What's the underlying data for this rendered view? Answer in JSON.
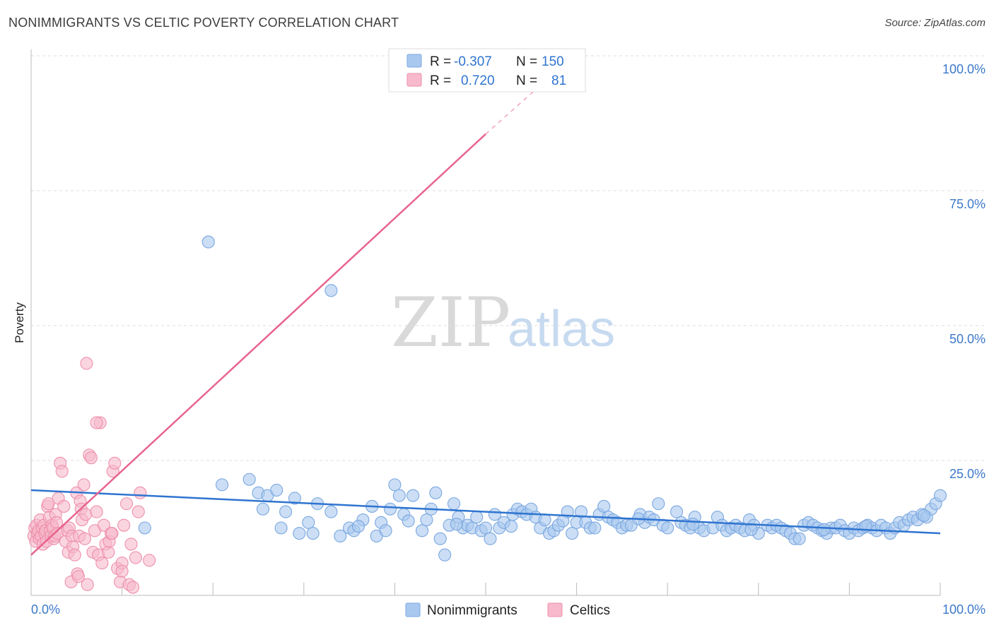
{
  "title": "NONIMMIGRANTS VS CELTIC POVERTY CORRELATION CHART",
  "source": "Source: ZipAtlas.com",
  "watermark": {
    "zip": "ZIP",
    "atlas": "atlas"
  },
  "legend": {
    "rows": [
      {
        "r_label": "R =",
        "r_value": "-0.307",
        "n_label": "N =",
        "n_value": "150"
      },
      {
        "r_label": "R =",
        "r_value": "0.720",
        "n_label": "N =",
        "n_value": "81"
      }
    ]
  },
  "bottom_legend": [
    "Nonimmigrants",
    "Celtics"
  ],
  "colors": {
    "blue_fill": "#a9c8ef",
    "blue_stroke": "#7aa7e0",
    "blue_line": "#2f74d0",
    "pink_fill": "#f7b9cb",
    "pink_stroke": "#ee8fab",
    "pink_line": "#e8648f",
    "tick_text": "#3d79c9",
    "grid": "#dddddd"
  },
  "chart_data": {
    "type": "scatter",
    "title": "NONIMMIGRANTS VS CELTIC POVERTY CORRELATION CHART",
    "xlabel": "",
    "ylabel": "Poverty",
    "xlim": [
      0,
      100
    ],
    "ylim": [
      0,
      100
    ],
    "x_tick_labels": [
      "0.0%",
      "100.0%"
    ],
    "y_tick_labels": [
      "25.0%",
      "50.0%",
      "75.0%",
      "100.0%"
    ],
    "y_tick_values": [
      25,
      50,
      75,
      100
    ],
    "series": [
      {
        "name": "Nonimmigrants",
        "r": -0.307,
        "n": 150,
        "trend": {
          "x": [
            0,
            100
          ],
          "y": [
            19.5,
            11.5
          ]
        },
        "points": [
          [
            12.5,
            12.5
          ],
          [
            19.5,
            65.5
          ],
          [
            21,
            20.5
          ],
          [
            24,
            21.5
          ],
          [
            25,
            19
          ],
          [
            25.5,
            16
          ],
          [
            26,
            18.5
          ],
          [
            27,
            19.5
          ],
          [
            27.5,
            12.5
          ],
          [
            28,
            15.5
          ],
          [
            29,
            18
          ],
          [
            29.5,
            11.5
          ],
          [
            30.5,
            13.5
          ],
          [
            31,
            11.5
          ],
          [
            31.5,
            17
          ],
          [
            33,
            15.5
          ],
          [
            33,
            56.5
          ],
          [
            34,
            11
          ],
          [
            35,
            12.5
          ],
          [
            35.5,
            12
          ],
          [
            36.5,
            14
          ],
          [
            37.5,
            16.5
          ],
          [
            38,
            11
          ],
          [
            38.5,
            13.5
          ],
          [
            39,
            12
          ],
          [
            39.5,
            16
          ],
          [
            40,
            20.5
          ],
          [
            40.5,
            18.5
          ],
          [
            41,
            15
          ],
          [
            42,
            18.5
          ],
          [
            43,
            12
          ],
          [
            43.5,
            14
          ],
          [
            44,
            16
          ],
          [
            44.5,
            19
          ],
          [
            45,
            10.5
          ],
          [
            45.5,
            7.5
          ],
          [
            46,
            13
          ],
          [
            46.5,
            17
          ],
          [
            47,
            14.5
          ],
          [
            47.5,
            12.5
          ],
          [
            48,
            13
          ],
          [
            48.5,
            12.5
          ],
          [
            49,
            14.5
          ],
          [
            49.5,
            12
          ],
          [
            50,
            12.5
          ],
          [
            50.5,
            10.5
          ],
          [
            51,
            15
          ],
          [
            51.5,
            12.5
          ],
          [
            52,
            13.5
          ],
          [
            53,
            15
          ],
          [
            53.5,
            16
          ],
          [
            54,
            15.5
          ],
          [
            54.5,
            15
          ],
          [
            55,
            16
          ],
          [
            55.5,
            14.5
          ],
          [
            56,
            12.5
          ],
          [
            56.5,
            14
          ],
          [
            57,
            11.5
          ],
          [
            57.5,
            12
          ],
          [
            58,
            13
          ],
          [
            59,
            15.5
          ],
          [
            59.5,
            11.5
          ],
          [
            60,
            13.5
          ],
          [
            60.5,
            15.5
          ],
          [
            61,
            13.5
          ],
          [
            61.5,
            12.5
          ],
          [
            62,
            12.5
          ],
          [
            62.5,
            15
          ],
          [
            63,
            16.5
          ],
          [
            63.5,
            14.5
          ],
          [
            64,
            14
          ],
          [
            64.5,
            13.5
          ],
          [
            65,
            12.5
          ],
          [
            65.5,
            13
          ],
          [
            66,
            13
          ],
          [
            67,
            15
          ],
          [
            67.5,
            13.5
          ],
          [
            68,
            14.5
          ],
          [
            68.5,
            14
          ],
          [
            69,
            17
          ],
          [
            69.5,
            13
          ],
          [
            70,
            12.5
          ],
          [
            71,
            15.5
          ],
          [
            71.5,
            13.5
          ],
          [
            72,
            13
          ],
          [
            72.5,
            12.5
          ],
          [
            73,
            14.5
          ],
          [
            73.5,
            12.5
          ],
          [
            74,
            12
          ],
          [
            75,
            12.5
          ],
          [
            75.5,
            14.5
          ],
          [
            76,
            13
          ],
          [
            76.5,
            12
          ],
          [
            77,
            12.5
          ],
          [
            77.5,
            13
          ],
          [
            78,
            12.5
          ],
          [
            78.5,
            12
          ],
          [
            79,
            14
          ],
          [
            79.5,
            13
          ],
          [
            80,
            11.5
          ],
          [
            81,
            13
          ],
          [
            81.5,
            12.5
          ],
          [
            82,
            13
          ],
          [
            82.5,
            12.5
          ],
          [
            83,
            12
          ],
          [
            83.5,
            11.5
          ],
          [
            84,
            10.5
          ],
          [
            84.5,
            10.5
          ],
          [
            85,
            13
          ],
          [
            85.5,
            13.5
          ],
          [
            86,
            13
          ],
          [
            86.5,
            12.5
          ],
          [
            87,
            12
          ],
          [
            87.5,
            11.5
          ],
          [
            88,
            12.5
          ],
          [
            88.5,
            12.5
          ],
          [
            89,
            13
          ],
          [
            89.5,
            12
          ],
          [
            90,
            11.5
          ],
          [
            90.5,
            12.5
          ],
          [
            91,
            12
          ],
          [
            91.5,
            12.5
          ],
          [
            92,
            13
          ],
          [
            92.5,
            12.5
          ],
          [
            93,
            12
          ],
          [
            93.5,
            13
          ],
          [
            94,
            12.5
          ],
          [
            94.5,
            11.5
          ],
          [
            95,
            12.5
          ],
          [
            95.5,
            13.5
          ],
          [
            96,
            13
          ],
          [
            96.5,
            14
          ],
          [
            97,
            14.5
          ],
          [
            97.5,
            14
          ],
          [
            98,
            15
          ],
          [
            98.5,
            14.5
          ],
          [
            99,
            16
          ],
          [
            99.5,
            17
          ],
          [
            100,
            18.5
          ],
          [
            98.2,
            14.8
          ],
          [
            91.8,
            12.8
          ],
          [
            87.2,
            12.2
          ],
          [
            79.2,
            12.2
          ],
          [
            72.8,
            13.2
          ],
          [
            66.8,
            14.2
          ],
          [
            58.5,
            13.8
          ],
          [
            52.8,
            12.8
          ],
          [
            46.8,
            13.2
          ],
          [
            41.5,
            13.8
          ],
          [
            36,
            12.8
          ]
        ]
      },
      {
        "name": "Celtics",
        "r": 0.72,
        "n": 81,
        "trend": {
          "x": [
            0,
            50
          ],
          "y": [
            7.5,
            85.5
          ],
          "dashed_extension": {
            "x": [
              50,
              56
            ],
            "y": [
              85.5,
              94.5
            ]
          }
        },
        "points": [
          [
            0.3,
            11
          ],
          [
            0.4,
            12.5
          ],
          [
            0.5,
            10
          ],
          [
            0.6,
            13
          ],
          [
            0.7,
            11.5
          ],
          [
            0.8,
            12
          ],
          [
            0.9,
            10.5
          ],
          [
            1,
            14
          ],
          [
            1.1,
            11
          ],
          [
            1.2,
            12.5
          ],
          [
            1.3,
            9.5
          ],
          [
            1.4,
            13
          ],
          [
            1.5,
            11.5
          ],
          [
            1.6,
            12
          ],
          [
            1.7,
            10
          ],
          [
            1.8,
            16.5
          ],
          [
            1.9,
            17
          ],
          [
            2,
            14.5
          ],
          [
            2.1,
            12
          ],
          [
            2.2,
            11
          ],
          [
            2.3,
            13
          ],
          [
            2.4,
            12.5
          ],
          [
            2.5,
            10.5
          ],
          [
            2.6,
            11
          ],
          [
            2.7,
            15
          ],
          [
            2.8,
            13.5
          ],
          [
            2.9,
            11.5
          ],
          [
            3,
            18
          ],
          [
            3.2,
            24.5
          ],
          [
            3.4,
            23
          ],
          [
            3.6,
            16.5
          ],
          [
            3.8,
            10
          ],
          [
            4,
            12
          ],
          [
            4.1,
            8
          ],
          [
            4.2,
            12.5
          ],
          [
            4.4,
            2.5
          ],
          [
            4.5,
            11
          ],
          [
            4.6,
            9
          ],
          [
            4.8,
            7.5
          ],
          [
            5,
            19
          ],
          [
            5.1,
            4
          ],
          [
            5.2,
            3.5
          ],
          [
            5.3,
            11
          ],
          [
            5.4,
            17.5
          ],
          [
            5.5,
            16
          ],
          [
            5.6,
            14
          ],
          [
            5.8,
            20.5
          ],
          [
            5.9,
            10.5
          ],
          [
            6,
            15
          ],
          [
            6.2,
            2
          ],
          [
            6.4,
            26
          ],
          [
            6.6,
            25.5
          ],
          [
            6.8,
            8
          ],
          [
            7,
            12
          ],
          [
            7.2,
            15.5
          ],
          [
            7.4,
            7.5
          ],
          [
            7.6,
            32
          ],
          [
            7.8,
            6
          ],
          [
            8,
            13
          ],
          [
            8.2,
            9.5
          ],
          [
            8.5,
            8
          ],
          [
            8.6,
            10
          ],
          [
            8.8,
            11.5
          ],
          [
            9,
            23
          ],
          [
            9.2,
            24.5
          ],
          [
            9.5,
            5
          ],
          [
            9.8,
            2.5
          ],
          [
            10,
            6
          ],
          [
            10.2,
            13
          ],
          [
            10.5,
            17
          ],
          [
            10.8,
            2
          ],
          [
            11,
            9.5
          ],
          [
            11.2,
            1.5
          ],
          [
            11.5,
            7
          ],
          [
            11.8,
            15.5
          ],
          [
            6.1,
            43
          ],
          [
            7.2,
            32
          ],
          [
            8.9,
            11.5
          ],
          [
            10,
            4.5
          ],
          [
            12,
            19
          ],
          [
            13,
            6.5
          ]
        ]
      }
    ]
  }
}
